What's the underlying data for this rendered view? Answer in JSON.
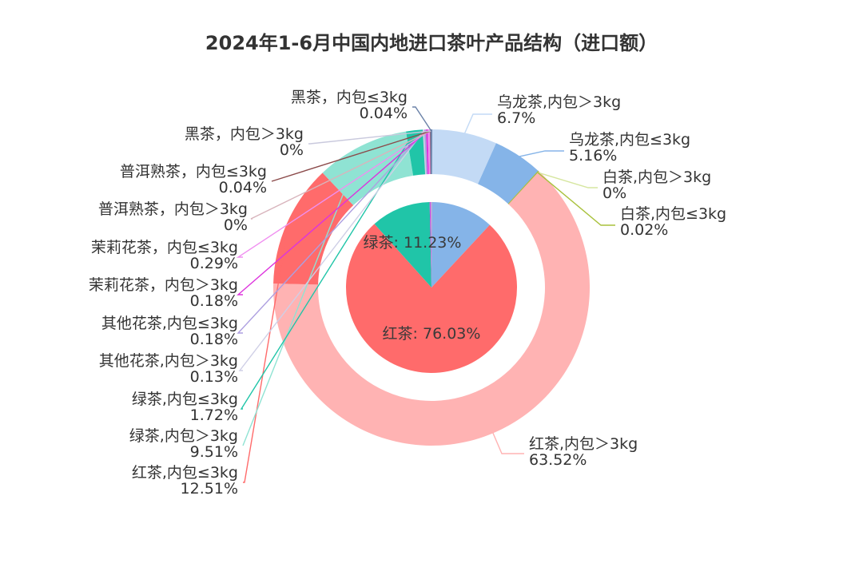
{
  "chart_data": {
    "type": "pie",
    "title": "2024年1-6月中国内地进口茶叶产品结构（进口额）",
    "inner": {
      "categories": [
        "乌龙茶",
        "红茶",
        "绿茶",
        "其他",
        "黑茶"
      ],
      "labels": {
        "红茶": "红茶: 76.03%",
        "绿茶": "绿茶: 11.23%"
      },
      "values": [
        11.86,
        76.03,
        11.23,
        0.31,
        0.04
      ],
      "colors": [
        "#85b4e8",
        "#ff6b6b",
        "#20c5a8",
        "#cf3fe0",
        "#bfa8d8"
      ]
    },
    "outer": {
      "categories": [
        "乌龙茶,内包＞3kg",
        "乌龙茶,内包≤3kg",
        "白茶,内包＞3kg",
        "白茶,内包≤3kg",
        "红茶,内包＞3kg",
        "红茶,内包≤3kg",
        "绿茶,内包＞3kg",
        "绿茶,内包≤3kg",
        "其他花茶,内包＞3kg",
        "其他花茶,内包≤3kg",
        "茉莉花茶，内包＞3kg",
        "茉莉花茶，内包≤3kg",
        "普洱熟茶，内包＞3kg",
        "普洱熟茶，内包≤3kg",
        "黑茶，内包＞3kg",
        "黑茶，内包≤3kg"
      ],
      "value_labels": [
        "6.7%",
        "5.16%",
        "0%",
        "0.02%",
        "63.52%",
        "12.51%",
        "9.51%",
        "1.72%",
        "0.13%",
        "0.18%",
        "0.18%",
        "0.29%",
        "0%",
        "0.04%",
        "0%",
        "0.04%"
      ],
      "values": [
        6.7,
        5.16,
        0,
        0.02,
        63.52,
        12.51,
        9.51,
        1.72,
        0.13,
        0.18,
        0.18,
        0.29,
        0,
        0.04,
        0,
        0.04
      ],
      "colors": [
        "#c3daf5",
        "#85b4e8",
        "#d6e6a0",
        "#a9c13c",
        "#ffb3b3",
        "#ff6b6b",
        "#8fe3d3",
        "#20c5a8",
        "#cfcfe6",
        "#ad9fe0",
        "#dd33dd",
        "#f08ff0",
        "#d8b4bc",
        "#8b4a4a",
        "#c9c9dd",
        "#6b82a8"
      ]
    }
  }
}
